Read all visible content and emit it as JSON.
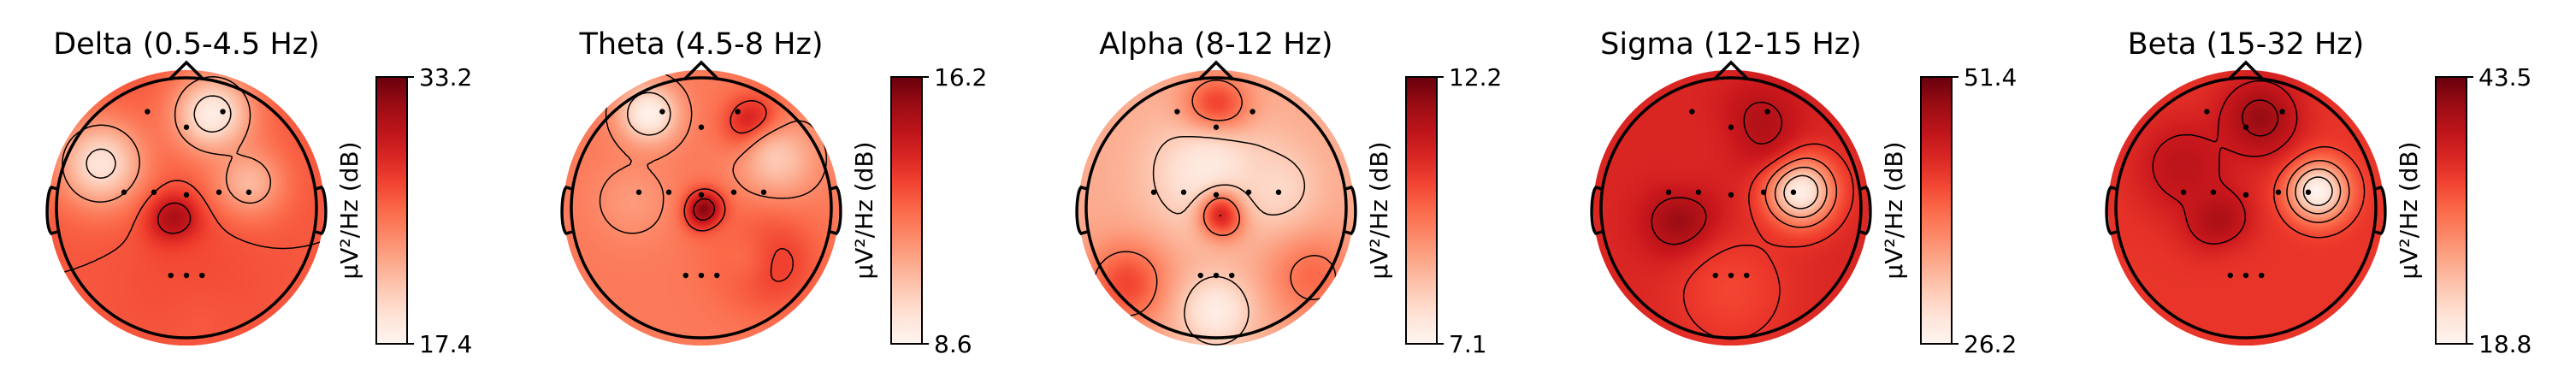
{
  "chart_data": [
    {
      "type": "heatmap",
      "title": "Delta (0.5-4.5 Hz)",
      "colorbar": {
        "label": "µV²/Hz (dB)",
        "min": 17.4,
        "max": 33.2
      },
      "colormap": "Reds",
      "features": [
        {
          "x": 0.19,
          "y": 0.68,
          "v": 0.05,
          "s": 0.2
        },
        {
          "x": -0.62,
          "y": 0.32,
          "v": 0.1,
          "s": 0.22
        },
        {
          "x": -0.08,
          "y": -0.1,
          "v": 0.95,
          "s": 0.13
        },
        {
          "x": 0.45,
          "y": 0.18,
          "v": 0.25,
          "s": 0.18
        },
        {
          "x": 0.05,
          "y": -0.55,
          "v": 0.6,
          "s": 0.3
        },
        {
          "x": 0.1,
          "y": -0.85,
          "v": 0.55,
          "s": 0.25
        }
      ],
      "base": 0.55,
      "levels": [
        0.15,
        0.35,
        0.55,
        0.75,
        0.9
      ],
      "colorbar_ticks": [
        "33.2",
        "17.4"
      ]
    },
    {
      "type": "heatmap",
      "title": "Theta (4.5-8 Hz)",
      "colorbar": {
        "label": "µV²/Hz (dB)",
        "min": 8.6,
        "max": 16.2
      },
      "colormap": "Reds",
      "features": [
        {
          "x": -0.38,
          "y": 0.68,
          "v": 0.02,
          "s": 0.15
        },
        {
          "x": 0.38,
          "y": 0.6,
          "v": 0.85,
          "s": 0.14
        },
        {
          "x": 0.55,
          "y": 0.35,
          "v": 0.2,
          "s": 0.2
        },
        {
          "x": 0.02,
          "y": -0.02,
          "v": 1.0,
          "s": 0.1
        },
        {
          "x": -0.5,
          "y": 0.05,
          "v": 0.35,
          "s": 0.2
        },
        {
          "x": 0.5,
          "y": -0.4,
          "v": 0.65,
          "s": 0.24
        },
        {
          "x": 0.25,
          "y": -0.35,
          "v": 0.5,
          "s": 0.18
        }
      ],
      "base": 0.45,
      "levels": [
        0.2,
        0.4,
        0.6,
        0.8,
        0.95
      ],
      "colorbar_ticks": [
        "16.2",
        "8.6"
      ]
    },
    {
      "type": "heatmap",
      "title": "Alpha (8-12 Hz)",
      "colorbar": {
        "label": "µV²/Hz (dB)",
        "min": 7.1,
        "max": 12.2
      },
      "colormap": "Reds",
      "features": [
        {
          "x": 0.0,
          "y": 0.7,
          "v": 0.8,
          "s": 0.16
        },
        {
          "x": -0.05,
          "y": 0.25,
          "v": 0.05,
          "s": 0.3
        },
        {
          "x": 0.05,
          "y": -0.05,
          "v": 0.75,
          "s": 0.12
        },
        {
          "x": -0.65,
          "y": -0.55,
          "v": 0.6,
          "s": 0.2
        },
        {
          "x": 0.7,
          "y": -0.5,
          "v": 0.5,
          "s": 0.22
        },
        {
          "x": 0.45,
          "y": 0.15,
          "v": 0.15,
          "s": 0.2
        },
        {
          "x": 0.0,
          "y": -0.75,
          "v": 0.05,
          "s": 0.18
        }
      ],
      "base": 0.3,
      "levels": [
        0.2,
        0.45,
        0.7
      ],
      "colorbar_ticks": [
        "12.2",
        "7.1"
      ]
    },
    {
      "type": "heatmap",
      "title": "Sigma (12-15 Hz)",
      "colorbar": {
        "label": "µV²/Hz (dB)",
        "min": 26.2,
        "max": 51.4
      },
      "colormap": "Reds",
      "features": [
        {
          "x": 0.5,
          "y": 0.12,
          "v": 0.02,
          "s": 0.17
        },
        {
          "x": -0.35,
          "y": -0.1,
          "v": 0.95,
          "s": 0.18
        },
        {
          "x": 0.2,
          "y": 0.6,
          "v": 0.85,
          "s": 0.2
        },
        {
          "x": -0.3,
          "y": 0.45,
          "v": 0.7,
          "s": 0.25
        },
        {
          "x": 0.0,
          "y": -0.6,
          "v": 0.6,
          "s": 0.3
        }
      ],
      "base": 0.7,
      "levels": [
        0.2,
        0.35,
        0.5,
        0.65,
        0.8
      ],
      "colorbar_ticks": [
        "51.4",
        "26.2"
      ]
    },
    {
      "type": "heatmap",
      "title": "Beta (15-32 Hz)",
      "colorbar": {
        "label": "µV²/Hz (dB)",
        "min": 18.8,
        "max": 43.5
      },
      "colormap": "Reds",
      "features": [
        {
          "x": 0.52,
          "y": 0.12,
          "v": 0.0,
          "s": 0.15
        },
        {
          "x": -0.2,
          "y": -0.1,
          "v": 0.9,
          "s": 0.16
        },
        {
          "x": 0.1,
          "y": 0.65,
          "v": 0.9,
          "s": 0.2
        },
        {
          "x": -0.45,
          "y": 0.3,
          "v": 0.8,
          "s": 0.25
        },
        {
          "x": 0.0,
          "y": -0.65,
          "v": 0.65,
          "s": 0.3
        }
      ],
      "base": 0.65,
      "levels": [
        0.15,
        0.3,
        0.45,
        0.6,
        0.75,
        0.85
      ],
      "colorbar_ticks": [
        "43.5",
        "18.8"
      ]
    }
  ],
  "sensors": [
    [
      -0.3,
      0.74
    ],
    [
      0.28,
      0.74
    ],
    [
      0.0,
      0.62
    ],
    [
      -0.48,
      0.12
    ],
    [
      -0.25,
      0.12
    ],
    [
      0.0,
      0.1
    ],
    [
      0.25,
      0.12
    ],
    [
      0.48,
      0.12
    ],
    [
      -0.12,
      -0.52
    ],
    [
      0.0,
      -0.52
    ],
    [
      0.12,
      -0.52
    ]
  ]
}
